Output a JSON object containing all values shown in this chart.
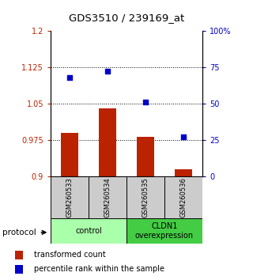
{
  "title": "GDS3510 / 239169_at",
  "samples": [
    "GSM260533",
    "GSM260534",
    "GSM260535",
    "GSM260536"
  ],
  "bar_values": [
    0.99,
    1.04,
    0.982,
    0.915
  ],
  "bar_base": 0.9,
  "scatter_pct": [
    68,
    72,
    51,
    27
  ],
  "bar_color": "#bb2200",
  "scatter_color": "#0000cc",
  "ylim_left": [
    0.9,
    1.2
  ],
  "ylim_right": [
    0,
    100
  ],
  "yticks_left": [
    0.9,
    0.975,
    1.05,
    1.125,
    1.2
  ],
  "yticks_right": [
    0,
    25,
    50,
    75,
    100
  ],
  "ytick_labels_left": [
    "0.9",
    "0.975",
    "1.05",
    "1.125",
    "1.2"
  ],
  "ytick_labels_right": [
    "0",
    "25",
    "50",
    "75",
    "100%"
  ],
  "hlines": [
    0.975,
    1.05,
    1.125
  ],
  "groups": [
    {
      "label": "control",
      "samples": [
        0,
        1
      ],
      "color": "#aaffaa"
    },
    {
      "label": "CLDN1\noverexpression",
      "samples": [
        2,
        3
      ],
      "color": "#44cc44"
    }
  ],
  "protocol_label": "protocol",
  "legend_bar_label": "transformed count",
  "legend_scatter_label": "percentile rank within the sample",
  "sample_bg_color": "#cccccc",
  "bar_width": 0.45
}
